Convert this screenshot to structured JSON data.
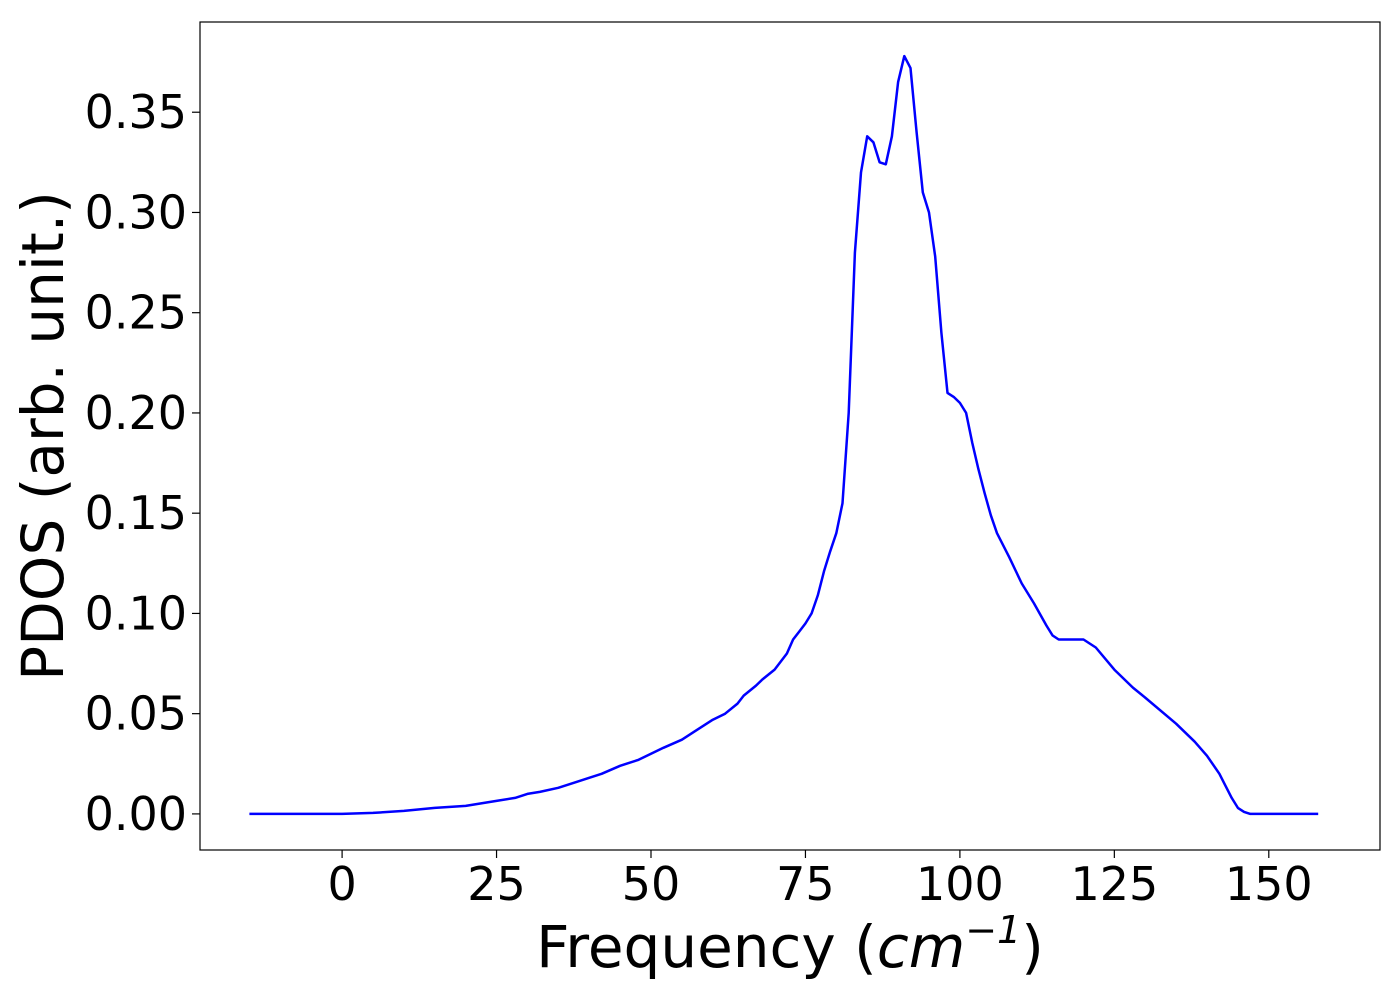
{
  "chart_data": {
    "type": "line",
    "title": "",
    "xlabel": "Frequency (cm⁻¹)",
    "xlabel_parts": {
      "prefix": "Frequency (",
      "math": "cm",
      "sup": "−1",
      "suffix": ")"
    },
    "ylabel": "PDOS (arb. unit.)",
    "xlim": [
      -23,
      168
    ],
    "ylim": [
      -0.018,
      0.395
    ],
    "xticks": [
      0,
      25,
      50,
      75,
      100,
      125,
      150
    ],
    "xtick_labels": [
      "0",
      "25",
      "50",
      "75",
      "100",
      "125",
      "150"
    ],
    "yticks": [
      0.0,
      0.05,
      0.1,
      0.15,
      0.2,
      0.25,
      0.3,
      0.35
    ],
    "ytick_labels": [
      "0.00",
      "0.05",
      "0.10",
      "0.15",
      "0.20",
      "0.25",
      "0.30",
      "0.35"
    ],
    "grid": false,
    "legend": null,
    "series": [
      {
        "color": "#0000ff",
        "x": [
          -15,
          -5,
          0,
          5,
          10,
          15,
          20,
          22,
          25,
          28,
          30,
          32,
          35,
          38,
          40,
          42,
          45,
          48,
          50,
          52,
          55,
          57,
          60,
          62,
          64,
          65,
          67,
          68,
          70,
          72,
          73,
          74,
          75,
          76,
          77,
          78,
          79,
          80,
          81,
          82,
          83,
          84,
          85,
          86,
          87,
          88,
          89,
          90,
          91,
          92,
          93,
          94,
          95,
          96,
          97,
          98,
          99,
          100,
          101,
          102,
          103,
          104,
          105,
          106,
          108,
          110,
          112,
          114,
          115,
          116,
          118,
          120,
          122,
          125,
          128,
          130,
          135,
          138,
          140,
          142,
          143,
          144,
          145,
          146,
          147,
          150,
          155,
          158
        ],
        "y": [
          0.0,
          0.0,
          0.0,
          0.0005,
          0.0015,
          0.003,
          0.004,
          0.005,
          0.0065,
          0.008,
          0.01,
          0.011,
          0.013,
          0.016,
          0.018,
          0.02,
          0.024,
          0.027,
          0.03,
          0.033,
          0.037,
          0.041,
          0.047,
          0.05,
          0.055,
          0.059,
          0.064,
          0.067,
          0.072,
          0.08,
          0.087,
          0.091,
          0.095,
          0.1,
          0.109,
          0.121,
          0.131,
          0.14,
          0.155,
          0.2,
          0.28,
          0.32,
          0.338,
          0.335,
          0.325,
          0.324,
          0.338,
          0.365,
          0.378,
          0.372,
          0.34,
          0.31,
          0.3,
          0.278,
          0.24,
          0.21,
          0.208,
          0.205,
          0.2,
          0.185,
          0.172,
          0.16,
          0.149,
          0.14,
          0.128,
          0.115,
          0.105,
          0.094,
          0.089,
          0.087,
          0.087,
          0.087,
          0.083,
          0.072,
          0.063,
          0.058,
          0.045,
          0.036,
          0.029,
          0.02,
          0.014,
          0.008,
          0.003,
          0.001,
          0.0,
          0.0,
          0.0,
          0.0
        ]
      }
    ]
  }
}
